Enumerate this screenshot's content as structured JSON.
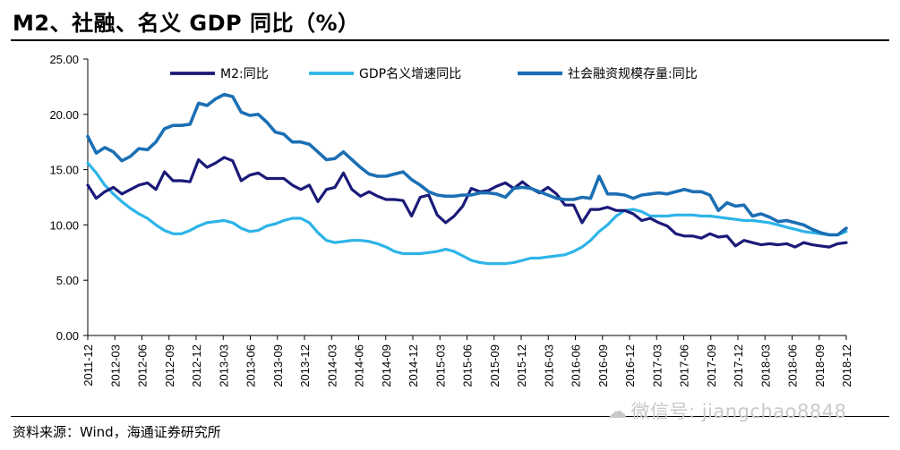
{
  "title": "M2、社融、名义 GDP 同比（%）",
  "source": "资料来源：Wind，海通证券研究所",
  "watermark": "微信号: jiangchao8848",
  "watermark_icon": "wechat-icon",
  "chart_data": {
    "type": "line",
    "title": "M2、社融、名义 GDP 同比（%）",
    "xlabel": "",
    "ylabel": "",
    "ylim": [
      0,
      25
    ],
    "yticks": [
      "0.00",
      "5.00",
      "10.00",
      "15.00",
      "20.00",
      "25.00"
    ],
    "grid": false,
    "legend_position": "top",
    "x_start": "2011-12",
    "x_end": "2019-01",
    "xtick_labels": [
      "2011-12",
      "2012-03",
      "2012-06",
      "2012-09",
      "2012-12",
      "2013-03",
      "2013-06",
      "2013-09",
      "2013-12",
      "2014-03",
      "2014-06",
      "2014-09",
      "2014-12",
      "2015-03",
      "2015-06",
      "2015-09",
      "2015-12",
      "2016-03",
      "2016-06",
      "2016-09",
      "2016-12",
      "2017-03",
      "2017-06",
      "2017-09",
      "2017-12",
      "2018-03",
      "2018-06",
      "2018-09",
      "2018-12"
    ],
    "series": [
      {
        "name": "M2:同比",
        "color": "#1a1a78",
        "values": [
          13.6,
          12.4,
          13.0,
          13.4,
          12.8,
          13.2,
          13.6,
          13.8,
          13.2,
          14.8,
          14.0,
          14.0,
          13.9,
          15.9,
          15.2,
          15.6,
          16.1,
          15.8,
          14.0,
          14.5,
          14.7,
          14.2,
          14.2,
          14.2,
          13.6,
          13.2,
          13.6,
          12.1,
          13.2,
          13.4,
          14.7,
          13.2,
          12.6,
          13.0,
          12.6,
          12.3,
          12.3,
          12.2,
          10.8,
          12.5,
          12.7,
          10.9,
          10.2,
          10.8,
          11.7,
          13.3,
          13.0,
          13.1,
          13.5,
          13.8,
          13.3,
          13.9,
          13.3,
          12.9,
          13.4,
          12.8,
          11.8,
          11.8,
          10.2,
          11.4,
          11.4,
          11.6,
          11.3,
          11.3,
          11.0,
          10.4,
          10.6,
          10.2,
          9.9,
          9.2,
          9.0,
          9.0,
          8.8,
          9.2,
          8.9,
          9.0,
          8.1,
          8.6,
          8.4,
          8.2,
          8.3,
          8.2,
          8.3,
          8.0,
          8.4,
          8.2,
          8.1,
          8.0,
          8.3,
          8.4
        ]
      },
      {
        "name": "GDP名义增速同比",
        "color": "#2db4e8",
        "values": [
          15.6,
          14.7,
          13.6,
          12.8,
          12.1,
          11.5,
          11.0,
          10.6,
          10.0,
          9.5,
          9.2,
          9.2,
          9.5,
          9.9,
          10.2,
          10.3,
          10.4,
          10.2,
          9.7,
          9.4,
          9.5,
          9.9,
          10.1,
          10.4,
          10.6,
          10.6,
          10.2,
          9.3,
          8.6,
          8.4,
          8.5,
          8.6,
          8.6,
          8.5,
          8.3,
          8.0,
          7.6,
          7.4,
          7.4,
          7.4,
          7.5,
          7.6,
          7.8,
          7.6,
          7.2,
          6.8,
          6.6,
          6.5,
          6.5,
          6.5,
          6.6,
          6.8,
          7.0,
          7.0,
          7.1,
          7.2,
          7.3,
          7.6,
          8.0,
          8.6,
          9.4,
          10.0,
          10.8,
          11.3,
          11.4,
          11.2,
          10.8,
          10.8,
          10.8,
          10.9,
          10.9,
          10.9,
          10.8,
          10.8,
          10.7,
          10.6,
          10.5,
          10.4,
          10.4,
          10.3,
          10.2,
          10.0,
          9.8,
          9.6,
          9.4,
          9.3,
          9.2,
          9.1,
          9.1,
          9.4
        ]
      },
      {
        "name": "社会融资规模存量:同比",
        "color": "#1b6fb4",
        "values": [
          18.0,
          16.5,
          17.0,
          16.6,
          15.8,
          16.2,
          16.9,
          16.8,
          17.5,
          18.7,
          19.0,
          19.0,
          19.1,
          21.0,
          20.8,
          21.4,
          21.8,
          21.6,
          20.2,
          19.9,
          20.0,
          19.3,
          18.4,
          18.2,
          17.5,
          17.5,
          17.3,
          16.6,
          15.9,
          16.0,
          16.6,
          15.9,
          15.2,
          14.6,
          14.4,
          14.4,
          14.6,
          14.8,
          14.1,
          13.6,
          13.0,
          12.7,
          12.6,
          12.6,
          12.7,
          12.7,
          12.9,
          12.9,
          12.8,
          12.5,
          13.3,
          13.4,
          13.3,
          13.0,
          12.7,
          12.4,
          12.3,
          12.3,
          12.5,
          12.4,
          14.4,
          12.8,
          12.8,
          12.7,
          12.4,
          12.7,
          12.8,
          12.9,
          12.8,
          13.0,
          13.2,
          13.0,
          13.0,
          12.7,
          11.3,
          12.0,
          11.7,
          11.8,
          10.8,
          11.0,
          10.7,
          10.3,
          10.4,
          10.2,
          10.0,
          9.6,
          9.3,
          9.1,
          9.1,
          9.7
        ]
      }
    ]
  }
}
